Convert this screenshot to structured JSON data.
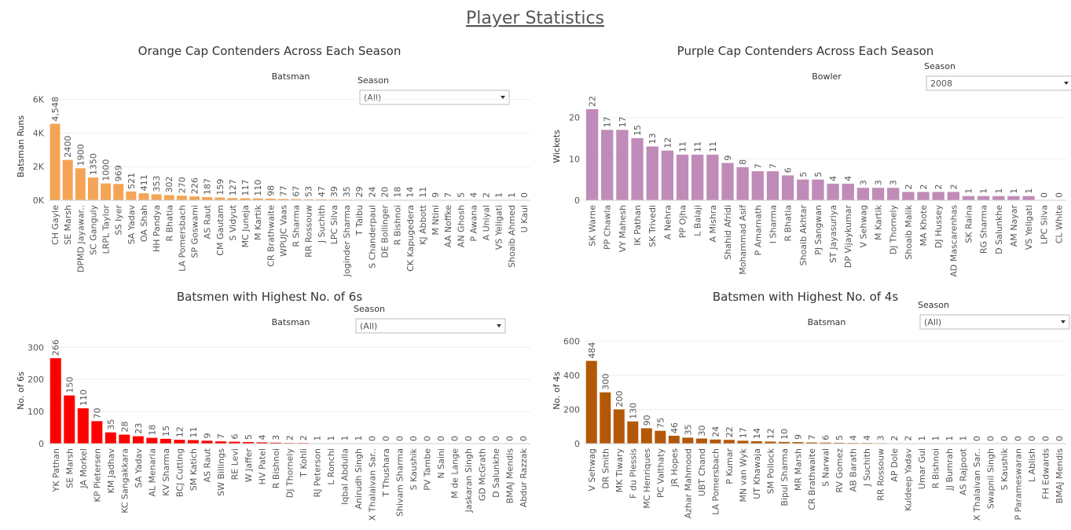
{
  "title": "Player Statistics",
  "chart_data": [
    {
      "type": "bar",
      "title": "Orange Cap Contenders Across Each Season",
      "subtitle": "Batsman",
      "filter_label": "Season",
      "filter_value": "(All)",
      "y_label": "Batsman Runs",
      "color": "#f5a455",
      "categories": [
        "CH Gayle",
        "SE Marsh",
        "DPMD Jayawar..",
        "SC Ganguly",
        "LRPL Taylor",
        "SS Iyer",
        "SA Yadav",
        "OA Shah",
        "HH Pandya",
        "R Bhatia",
        "LA Pomersbach",
        "SP Goswami",
        "AS Raut",
        "CM Gautam",
        "S Vidyut",
        "MC Juneja",
        "M Kartik",
        "CR Brathwaite",
        "WPUJC Vaas",
        "R Sharma",
        "RR Rossouw",
        "J Suchith",
        "LPC Silva",
        "Joginder Sharma",
        "T Taibu",
        "S Chanderpaul",
        "DE Bollinger",
        "R Bishnoi",
        "CK Kapugedera",
        "KJ Abbott",
        "M Ntini",
        "AA Noffke",
        "AN Ghosh",
        "P Awana",
        "A Uniyal",
        "VS Yeligati",
        "Shoaib Ahmed",
        "U Kaul"
      ],
      "values": [
        4548,
        2400,
        1900,
        1350,
        1000,
        969,
        521,
        411,
        353,
        302,
        270,
        226,
        187,
        159,
        127,
        117,
        110,
        98,
        77,
        67,
        53,
        47,
        39,
        35,
        29,
        24,
        20,
        18,
        14,
        11,
        9,
        7,
        5,
        4,
        2,
        1,
        1,
        0
      ],
      "value_labels": [
        "4,548",
        "2400",
        "1900",
        "1350",
        "1000",
        "969",
        "521",
        "411",
        "353",
        "302",
        "270",
        "226",
        "187",
        "159",
        "127",
        "117",
        "110",
        "98",
        "77",
        "67",
        "53",
        "47",
        "39",
        "35",
        "29",
        "24",
        "20",
        "18",
        "14",
        "11",
        "9",
        "7",
        "5",
        "4",
        "2",
        "1",
        "1",
        "0"
      ],
      "ylim": [
        0,
        6400
      ],
      "yticks": [
        {
          "value": 0,
          "label": "0K"
        },
        {
          "value": 2000,
          "label": "2K"
        },
        {
          "value": 4000,
          "label": "4K"
        },
        {
          "value": 6000,
          "label": "6K"
        }
      ]
    },
    {
      "type": "bar",
      "title": "Purple Cap Contenders Across Each Season",
      "subtitle": "Bowler",
      "filter_label": "Season",
      "filter_value": "2008",
      "y_label": "Wickets",
      "color": "#c08bb8",
      "categories": [
        "SK Warne",
        "PP Chawla",
        "VY Mahesh",
        "IK Pathan",
        "SK Trivedi",
        "A Nehra",
        "PP Ojha",
        "L Balaji",
        "A Mishra",
        "Shahid Afridi",
        "Mohammad Asif",
        "P Amarnath",
        "I Sharma",
        "R Bhatia",
        "Shoaib Akhtar",
        "PJ Sangwan",
        "ST Jayasuriya",
        "DP Vijaykumar",
        "V Sehwag",
        "M Kartik",
        "DJ Thornely",
        "Shoaib Malik",
        "MA Khote",
        "DJ Hussey",
        "AD Mascarenhas",
        "SK Raina",
        "RG Sharma",
        "D Salunkhe",
        "AM Nayar",
        "VS Yeligati",
        "LPC Silva",
        "CL White"
      ],
      "values": [
        22,
        17,
        17,
        15,
        13,
        12,
        11,
        11,
        11,
        9,
        8,
        7,
        7,
        6,
        5,
        5,
        4,
        4,
        3,
        3,
        3,
        2,
        2,
        2,
        2,
        1,
        1,
        1,
        1,
        1,
        0,
        0
      ],
      "ylim": [
        0,
        26
      ],
      "yticks": [
        0,
        10,
        20
      ]
    },
    {
      "type": "bar",
      "title": "Batsmen with Highest No. of 6s",
      "subtitle": "Batsman",
      "filter_label": "Season",
      "filter_value": "(All)",
      "y_label": "No. of 6s",
      "color": "#ff0000",
      "categories": [
        "YK Pathan",
        "SE Marsh",
        "JA Morkel",
        "KP Pietersen",
        "KM Jadhav",
        "KC Sangakkara",
        "SA Yadav",
        "AL Menaria",
        "KV Sharma",
        "BCJ Cutting",
        "SM Katich",
        "AS Raut",
        "SW Billings",
        "RE Levi",
        "W Jaffer",
        "HV Patel",
        "R Bishnoi",
        "DJ Thornely",
        "T Kohli",
        "RJ Peterson",
        "L Ronchi",
        "Iqbal Abdulla",
        "Anirudh Singh",
        "X Thalaivan Sar..",
        "T Thushara",
        "Shivam Sharma",
        "S Kaushik",
        "PV Tambe",
        "N Saini",
        "M de Lange",
        "Jaskaran Singh",
        "GD McGrath",
        "D Salunkhe",
        "BMAJ Mendis",
        "Abdur Razzak"
      ],
      "values": [
        266,
        150,
        110,
        70,
        35,
        28,
        23,
        18,
        15,
        12,
        11,
        9,
        7,
        6,
        5,
        4,
        3,
        2,
        2,
        1,
        1,
        1,
        1,
        0,
        0,
        0,
        0,
        0,
        0,
        0,
        0,
        0,
        0,
        0,
        0
      ],
      "ylim": [
        0,
        330
      ],
      "yticks": [
        0,
        100,
        200,
        300
      ]
    },
    {
      "type": "bar",
      "title": "Batsmen with Highest No. of 4s",
      "subtitle": "Batsman",
      "filter_label": "Season",
      "filter_value": "(All)",
      "y_label": "No. of 4s",
      "color": "#b35806",
      "categories": [
        "V Sehwag",
        "DR Smith",
        "MK Tiwary",
        "F du Plessis",
        "MC Henriques",
        "PC Valthaty",
        "JR Hopes",
        "Azhar Mahmood",
        "UBT Chand",
        "LA Pomersbach",
        "P Kumar",
        "MN van Wyk",
        "UT Khawaja",
        "SM Pollock",
        "Bipul Sharma",
        "MR Marsh",
        "CR Brathwaite",
        "S Narwal",
        "RV Gomez",
        "AB Barath",
        "J Suchith",
        "RR Rossouw",
        "AP Dole",
        "Kuldeep Yadav",
        "Umar Gul",
        "R Bishnoi",
        "JJ Bumrah",
        "AS Rajpoot",
        "X Thalaivan Sar..",
        "Swapnil Singh",
        "S Kaushik",
        "P Parameswaran",
        "L Ablish",
        "FH Edwards",
        "BMAJ Mendis"
      ],
      "values": [
        484,
        300,
        200,
        130,
        90,
        75,
        46,
        35,
        30,
        24,
        22,
        17,
        14,
        12,
        10,
        9,
        7,
        6,
        5,
        4,
        4,
        3,
        2,
        2,
        1,
        1,
        1,
        1,
        0,
        0,
        0,
        0,
        0,
        0,
        0
      ],
      "ylim": [
        0,
        620
      ],
      "yticks": [
        0,
        200,
        400,
        600
      ]
    }
  ]
}
